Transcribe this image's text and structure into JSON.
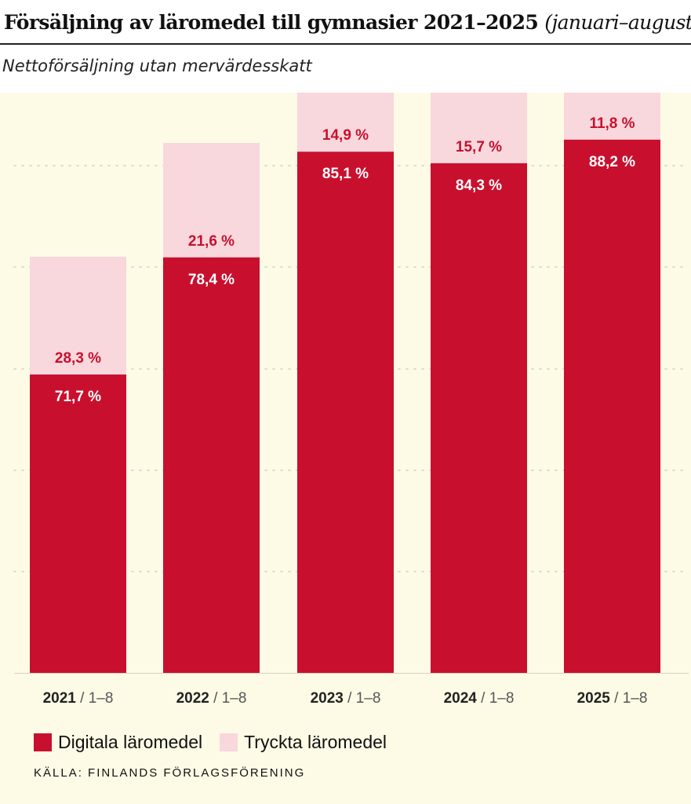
{
  "header": {
    "title": "Försäljning av läromedel till gymnasier 2021–2025",
    "title_suffix": "(januari–augusti)",
    "subtitle": "Nettoförsäljning utan mervärdesskatt"
  },
  "legend": {
    "digital_label": "Digitala läromedel",
    "printed_label": "Tryckta läromedel"
  },
  "source": "KÄLLA: FINLANDS FÖRLAGSFÖRENING",
  "colors": {
    "digital": "#c8102e",
    "printed": "#f8d7dd",
    "background": "#fdfbe6",
    "grid": "#e2dcc4",
    "white_text": "#ffffff"
  },
  "chart_data": {
    "type": "bar",
    "stacked": true,
    "categories": [
      "2021",
      "2022",
      "2023",
      "2024",
      "2025"
    ],
    "category_suffix": "/ 1–8",
    "relative_total": [
      53,
      67.5,
      78,
      77,
      77
    ],
    "series": [
      {
        "name": "Digitala läromedel",
        "share_labels": [
          "71,7 %",
          "78,4 %",
          "85,1 %",
          "84,3 %",
          "88,2 %"
        ],
        "share_values": [
          71.7,
          78.4,
          85.1,
          84.3,
          88.2
        ]
      },
      {
        "name": "Tryckta läromedel",
        "share_labels": [
          "28,3 %",
          "21,6 %",
          "14,9 %",
          "15,7 %",
          "11,8 %"
        ],
        "share_values": [
          28.3,
          21.6,
          14.9,
          15.7,
          11.8
        ]
      }
    ],
    "grid": true,
    "legend_position": "bottom-left"
  }
}
